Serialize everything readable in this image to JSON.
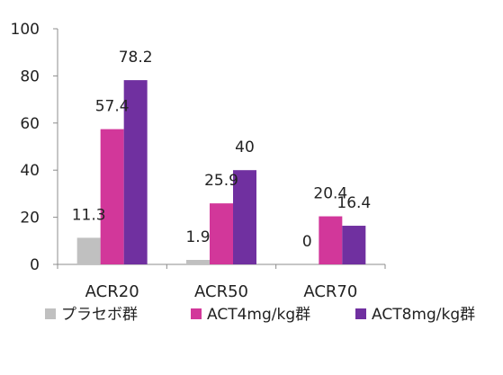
{
  "chart_data": {
    "type": "bar",
    "title": "",
    "xlabel": "",
    "ylabel": "",
    "categories": [
      "ACR20",
      "ACR50",
      "ACR70"
    ],
    "ylim": [
      0,
      100
    ],
    "yticks": [
      0,
      20,
      40,
      60,
      80,
      100
    ],
    "ytick_labels": [
      "0",
      "20",
      "40",
      "60",
      "80",
      "100"
    ],
    "grid": false,
    "legend_position": "bottom",
    "series": [
      {
        "name": "プラセボ群",
        "values": [
          11.3,
          1.9,
          0
        ],
        "labels": [
          "11.3",
          "1.9",
          "0"
        ],
        "color": "#c0c0c0"
      },
      {
        "name": "ACT4mg/kg群",
        "values": [
          57.4,
          25.9,
          20.4
        ],
        "labels": [
          "57.4",
          "25.9",
          "20.4"
        ],
        "color": "#d2379a"
      },
      {
        "name": "ACT8mg/kg群",
        "values": [
          78.2,
          40,
          16.4
        ],
        "labels": [
          "78.2",
          "40",
          "16.4"
        ],
        "color": "#7030a0"
      }
    ]
  }
}
